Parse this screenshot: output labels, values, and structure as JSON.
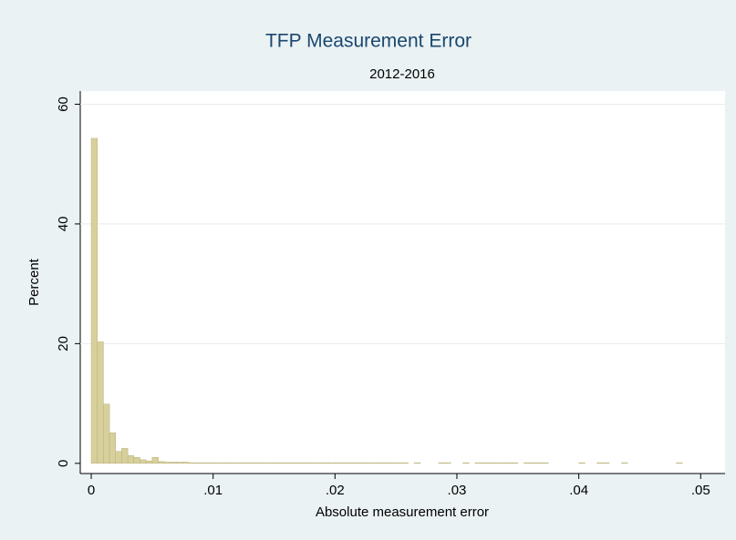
{
  "chart_data": {
    "type": "histogram",
    "title": "TFP Measurement Error",
    "subtitle": "2012-2016",
    "x_label": "Absolute measurement error",
    "y_label": "Percent",
    "bins": [
      0,
      0.0005,
      0.001,
      0.0015,
      0.002,
      0.0025,
      0.003,
      0.0035,
      0.004,
      0.0045,
      0.005,
      0.0055,
      0.006,
      0.0065,
      0.007,
      0.0075,
      0.008,
      0.0085,
      0.009,
      0.0095,
      0.01,
      0.0105,
      0.011,
      0.0115,
      0.012,
      0.0125,
      0.013,
      0.0135,
      0.014,
      0.0145,
      0.015,
      0.0155,
      0.016,
      0.0165,
      0.017,
      0.0175,
      0.018,
      0.0185,
      0.019,
      0.0195,
      0.02,
      0.0205,
      0.021,
      0.0215,
      0.022,
      0.0225,
      0.023,
      0.0235,
      0.024,
      0.0245,
      0.025,
      0.0255,
      0.026,
      0.0265,
      0.027,
      0.0275,
      0.028,
      0.0285,
      0.029,
      0.0295,
      0.03,
      0.0305,
      0.031,
      0.0315,
      0.032,
      0.0325,
      0.033,
      0.0335,
      0.034,
      0.0345,
      0.035,
      0.0355,
      0.036,
      0.0365,
      0.037,
      0.0375,
      0.038,
      0.0385,
      0.039,
      0.0395,
      0.04,
      0.0405,
      0.041,
      0.0415,
      0.042,
      0.0425,
      0.043,
      0.0435,
      0.044,
      0.0445,
      0.045,
      0.0455,
      0.046,
      0.0465,
      0.047,
      0.0475,
      0.048,
      0.0485
    ],
    "values": [
      54.3,
      20.3,
      9.9,
      5.1,
      2.0,
      2.5,
      1.3,
      1.0,
      0.6,
      0.4,
      1.0,
      0.3,
      0.2,
      0.2,
      0.2,
      0.2,
      0.1,
      0.1,
      0.1,
      0.1,
      0.1,
      0.1,
      0.1,
      0.1,
      0.1,
      0.1,
      0.1,
      0.1,
      0.1,
      0.1,
      0.1,
      0.1,
      0.1,
      0.1,
      0.1,
      0.1,
      0.1,
      0.1,
      0.1,
      0.1,
      0.1,
      0.1,
      0.1,
      0.1,
      0.1,
      0.1,
      0.1,
      0.1,
      0.1,
      0.1,
      0.1,
      0.1,
      0,
      0.1,
      0,
      0,
      0,
      0.1,
      0.1,
      0,
      0,
      0.1,
      0,
      0.1,
      0.1,
      0.1,
      0.1,
      0.1,
      0.1,
      0.1,
      0,
      0.1,
      0.1,
      0.1,
      0.1,
      0,
      0,
      0,
      0,
      0,
      0.1,
      0,
      0,
      0.1,
      0.1,
      0,
      0,
      0.1,
      0,
      0,
      0,
      0,
      0,
      0,
      0,
      0,
      0.1
    ],
    "color": "#d8d09c",
    "edge_color": "#b9b07a",
    "xlim": [
      -0.0009,
      0.052
    ],
    "ylim": [
      -1.7,
      62.2
    ],
    "xticks": [
      0,
      {
        "value": 0.01,
        "label": ".01"
      },
      {
        "value": 0.02,
        "label": ".02"
      },
      {
        "value": 0.03,
        "label": ".03"
      },
      {
        "value": 0.04,
        "label": ".04"
      },
      {
        "value": 0.05,
        "label": ".05"
      }
    ],
    "yticks": [
      0,
      20,
      40,
      60
    ],
    "grid": true
  }
}
